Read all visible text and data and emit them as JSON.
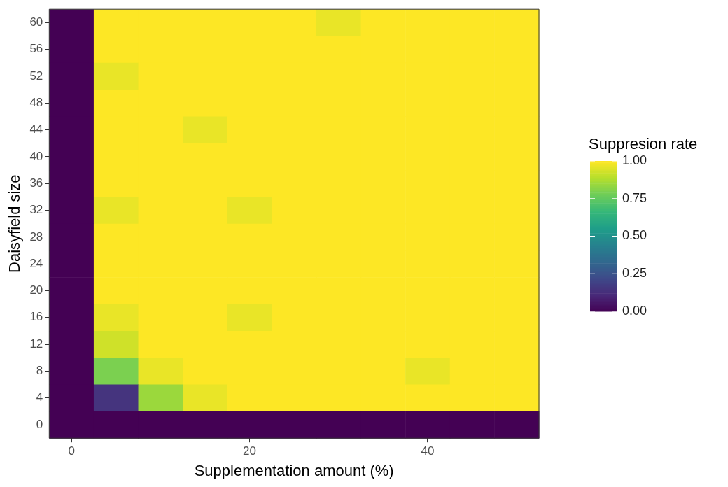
{
  "chart_data": {
    "type": "heatmap",
    "xlabel": "Supplementation amount (%)",
    "ylabel": "Daisyfield size",
    "clabel": "Suppresion rate",
    "categories": [
      "0",
      null,
      null,
      null,
      "20",
      null,
      null,
      null,
      "40",
      null,
      null
    ],
    "y_categories": [
      "60",
      "56",
      "52",
      "48",
      "44",
      "40",
      "36",
      "32",
      "28",
      "24",
      "20",
      "16",
      "12",
      "8",
      "4",
      "0"
    ],
    "cells": [
      [
        0,
        1,
        1,
        1,
        1,
        1,
        0.97,
        1,
        1,
        1,
        1
      ],
      [
        0,
        1,
        1,
        1,
        1,
        1,
        1,
        1,
        1,
        1,
        1
      ],
      [
        0,
        0.97,
        1,
        1,
        1,
        1,
        1,
        1,
        1,
        1,
        1
      ],
      [
        0,
        1,
        1,
        1,
        1,
        1,
        1,
        1,
        1,
        1,
        1
      ],
      [
        0,
        1,
        1,
        0.97,
        1,
        1,
        1,
        1,
        1,
        1,
        1
      ],
      [
        0,
        1,
        1,
        1,
        1,
        1,
        1,
        1,
        1,
        1,
        1
      ],
      [
        0,
        1,
        1,
        1,
        1,
        1,
        1,
        1,
        1,
        1,
        1
      ],
      [
        0,
        0.97,
        1,
        1,
        0.97,
        1,
        1,
        1,
        1,
        1,
        1
      ],
      [
        0,
        1,
        1,
        1,
        1,
        1,
        1,
        1,
        1,
        1,
        1
      ],
      [
        0,
        1,
        1,
        1,
        1,
        1,
        1,
        1,
        1,
        1,
        1
      ],
      [
        0,
        1,
        1,
        1,
        1,
        1,
        1,
        1,
        1,
        1,
        1
      ],
      [
        0,
        0.97,
        1,
        1,
        0.97,
        1,
        1,
        1,
        1,
        1,
        1
      ],
      [
        0,
        0.93,
        1,
        1,
        1,
        1,
        1,
        1,
        1,
        1,
        1
      ],
      [
        0,
        0.8,
        0.97,
        1,
        1,
        1,
        1,
        1,
        0.97,
        1,
        1
      ],
      [
        0,
        0.15,
        0.85,
        0.97,
        1,
        1,
        1,
        1,
        1,
        1,
        1
      ],
      [
        0,
        0,
        0,
        0,
        0,
        0,
        0,
        0,
        0,
        0,
        0
      ]
    ],
    "clim": [
      0,
      1
    ],
    "cticks": [
      {
        "value": 0,
        "label": "0.00"
      },
      {
        "value": 0.25,
        "label": "0.25"
      },
      {
        "value": 0.5,
        "label": "0.50"
      },
      {
        "value": 0.75,
        "label": "0.75"
      },
      {
        "value": 1,
        "label": "1.00"
      }
    ]
  }
}
